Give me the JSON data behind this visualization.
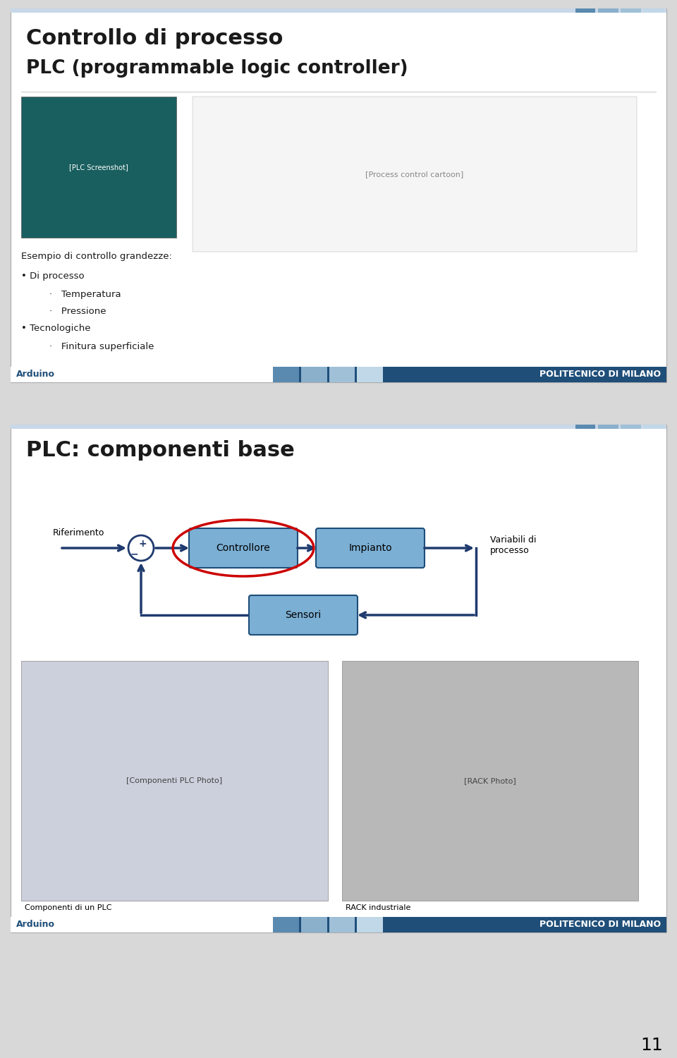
{
  "slide1": {
    "title1": "Controllo di processo",
    "title2": "PLC (programmable logic controller)",
    "example_text": "Esempio di controllo grandezze:",
    "bullet1": "• Di processo",
    "bullet1a": "Temperatura",
    "bullet1b": "Pressione",
    "bullet2": "• Tecnologiche",
    "bullet2a": "Finitura superficiale",
    "footer_left": "Arduino",
    "footer_right": "POLITECNICO DI MILANO",
    "bg_color": "#ffffff",
    "title_color": "#1a1a1a",
    "text_color": "#1a1a1a",
    "slide_border": "#aaaaaa"
  },
  "slide2": {
    "title": "PLC: componenti base",
    "lbl_riferimento": "Riferimento",
    "lbl_controllore": "Controllore",
    "lbl_impianto": "Impianto",
    "lbl_sensori": "Sensori",
    "lbl_variabili": "Variabili di\nprocesso",
    "caption1": "Componenti di un PLC",
    "caption2": "RACK industriale",
    "footer_left": "Arduino",
    "footer_right": "POLITECNICO DI MILANO",
    "bg_color": "#ffffff",
    "title_color": "#1a1a1a",
    "box_fill": "#7bafd4",
    "box_edge": "#1f4e79",
    "arrow_color": "#1f3a6e",
    "red_oval": "#cc0000",
    "slide_border": "#aaaaaa"
  },
  "page_number": "11",
  "outer_bg": "#d8d8d8",
  "footer_dark": "#1f4e79",
  "stripe_colors": [
    "#5a8ab0",
    "#8ab0cc",
    "#a0c0d8",
    "#c0d8e8"
  ]
}
